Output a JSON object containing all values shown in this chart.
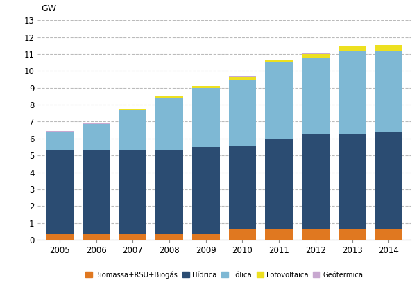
{
  "years": [
    2005,
    2006,
    2007,
    2008,
    2009,
    2010,
    2011,
    2012,
    2013,
    2014
  ],
  "biomassa": [
    0.38,
    0.38,
    0.38,
    0.38,
    0.38,
    0.68,
    0.68,
    0.68,
    0.68,
    0.68
  ],
  "hidrica": [
    4.92,
    4.92,
    4.92,
    4.92,
    5.12,
    4.92,
    5.32,
    5.62,
    5.62,
    5.72
  ],
  "eolica": [
    1.1,
    1.55,
    2.4,
    3.1,
    3.5,
    3.9,
    4.5,
    4.45,
    4.9,
    4.8
  ],
  "fotovoltaica": [
    0.02,
    0.02,
    0.05,
    0.1,
    0.1,
    0.15,
    0.15,
    0.25,
    0.25,
    0.32
  ],
  "geotermica": [
    0.02,
    0.02,
    0.02,
    0.02,
    0.02,
    0.02,
    0.02,
    0.02,
    0.02,
    0.02
  ],
  "colors": {
    "biomassa": "#E07820",
    "hidrica": "#2B4C72",
    "eolica": "#7EB8D4",
    "fotovoltaica": "#EDE020",
    "geotermica": "#C8A8D0"
  },
  "legend_labels": [
    "Biomassa+RSU+Biogás",
    "Hídrica",
    "Eólica",
    "Fotovoltaica",
    "Geótermica"
  ],
  "gw_label": "GW",
  "ylim": [
    0,
    13
  ],
  "yticks": [
    0,
    1,
    2,
    3,
    4,
    5,
    6,
    7,
    8,
    9,
    10,
    11,
    12,
    13
  ],
  "background_color": "#FFFFFF",
  "bar_width": 0.75,
  "grid_color": "#BBBBBB",
  "grid_linestyle": "--",
  "tick_fontsize": 8.5
}
